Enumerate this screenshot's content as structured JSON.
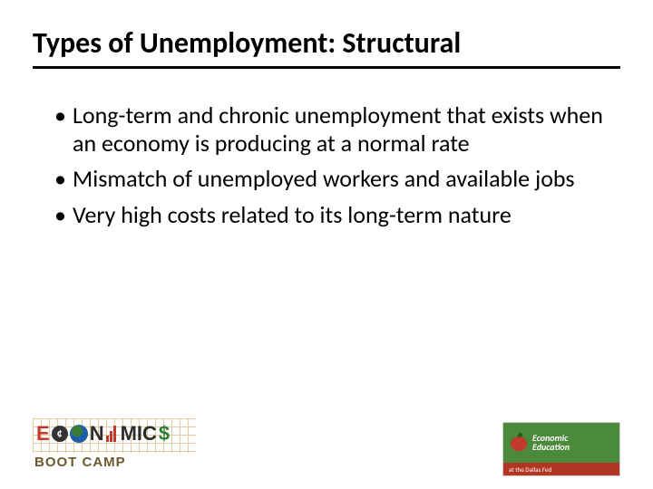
{
  "title": "Types of Unemployment: Structural",
  "bullets": [
    "Long-term and chronic unemployment that exists when an economy is producing at a normal rate",
    "Mismatch of unemployed workers and available jobs",
    "Very high costs related to its long-term nature"
  ],
  "footer": {
    "left_logo": {
      "word_parts": [
        "E",
        "¢",
        "N",
        "MIC",
        "$"
      ],
      "subtitle": "BOOT CAMP"
    },
    "right_logo": {
      "line1": "Economic",
      "line2": "Education",
      "bottom": "at the Dallas Fed"
    }
  },
  "colors": {
    "text": "#000000",
    "rule": "#000000",
    "bg": "#ffffff",
    "logo_green": "#4a8a3a",
    "logo_red": "#b33524"
  },
  "typography": {
    "title_fontsize": 32,
    "title_weight": 700,
    "body_fontsize": 26
  }
}
